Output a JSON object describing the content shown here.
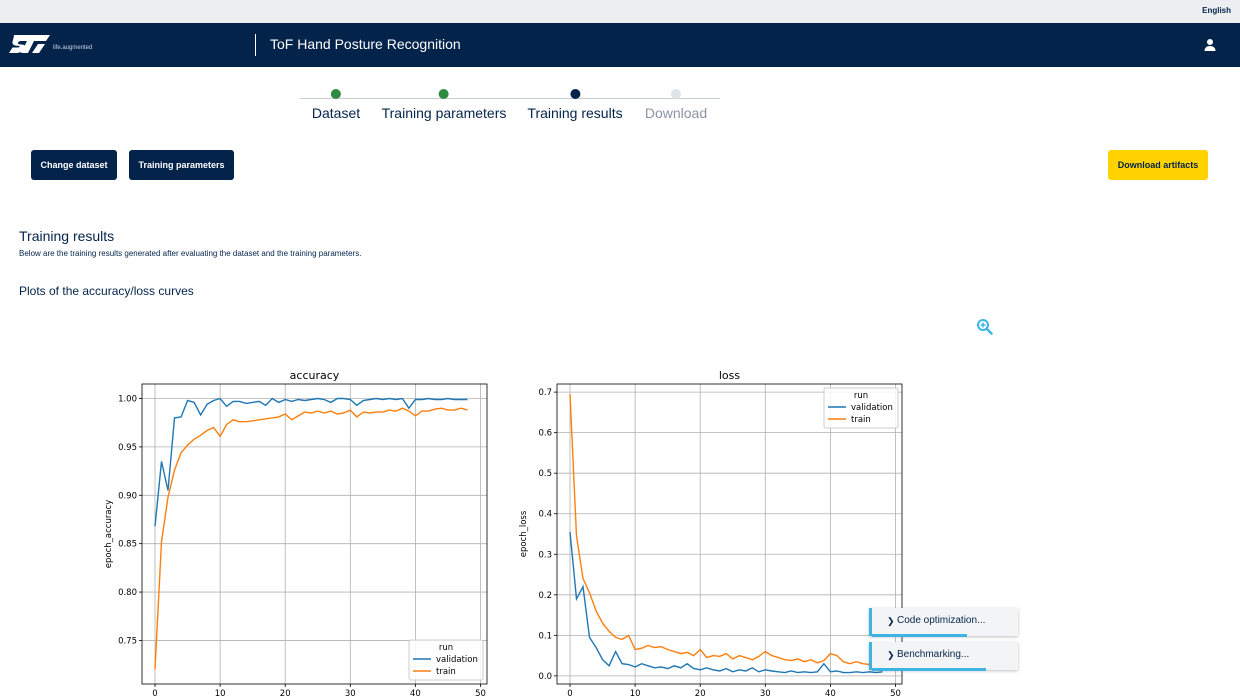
{
  "topbar": {
    "language": "English"
  },
  "header": {
    "tagline": "life.augmented",
    "title": "ToF Hand Posture Recognition"
  },
  "stepper": {
    "steps": [
      {
        "label": "Dataset",
        "state": "done"
      },
      {
        "label": "Training parameters",
        "state": "done"
      },
      {
        "label": "Training results",
        "state": "current"
      },
      {
        "label": "Download",
        "state": "pending"
      }
    ]
  },
  "actions": {
    "change_dataset": "Change dataset",
    "training_parameters": "Training parameters",
    "download_artifacts": "Download artifacts"
  },
  "results": {
    "title": "Training results",
    "description": "Below are the training results generated after evaluating the dataset and the training parameters.",
    "plots_title": "Plots of the accuracy/loss curves"
  },
  "colors": {
    "navy": "#03234b",
    "yellow": "#ffd200",
    "done": "#2e8b3f",
    "pending": "#dfe2e6",
    "accent": "#3cb4e6",
    "validation": "#1f77b4",
    "train": "#ff7f0e"
  },
  "chart_data": [
    {
      "type": "line",
      "title": "accuracy",
      "xlabel": "",
      "ylabel": "epoch_accuracy",
      "xlim": [
        -2,
        51
      ],
      "ylim": [
        0.705,
        1.015
      ],
      "xticks": [
        0,
        10,
        20,
        30,
        40,
        50
      ],
      "yticks": [
        0.75,
        0.8,
        0.85,
        0.9,
        0.95,
        1.0
      ],
      "ytick_labels": [
        "0.75",
        "0.80",
        "0.85",
        "0.90",
        "0.95",
        "1.00"
      ],
      "grid": true,
      "legend": {
        "title": "run",
        "position": "lower-right"
      },
      "series": [
        {
          "name": "validation",
          "color": "#1f77b4",
          "x": [
            0,
            1,
            2,
            3,
            4,
            5,
            6,
            7,
            8,
            9,
            10,
            11,
            12,
            13,
            14,
            15,
            16,
            17,
            18,
            19,
            20,
            21,
            22,
            23,
            24,
            25,
            26,
            27,
            28,
            29,
            30,
            31,
            32,
            33,
            34,
            35,
            36,
            37,
            38,
            39,
            40,
            41,
            42,
            43,
            44,
            45,
            46,
            47,
            48
          ],
          "y": [
            0.868,
            0.935,
            0.905,
            0.98,
            0.981,
            0.998,
            0.996,
            0.983,
            0.994,
            0.998,
            1.0,
            0.992,
            0.997,
            0.997,
            0.995,
            0.996,
            0.997,
            0.993,
            1.0,
            0.996,
            0.999,
            0.997,
            0.999,
            0.998,
            0.999,
            1.0,
            0.999,
            0.996,
            1.0,
            1.0,
            0.999,
            0.993,
            0.998,
            0.999,
            1.0,
            0.999,
            1.0,
            0.999,
            1.0,
            0.99,
            0.999,
            0.999,
            1.0,
            0.999,
            0.999,
            1.0,
            0.999,
            0.999,
            0.999
          ]
        },
        {
          "name": "train",
          "color": "#ff7f0e",
          "x": [
            0,
            1,
            2,
            3,
            4,
            5,
            6,
            7,
            8,
            9,
            10,
            11,
            12,
            13,
            14,
            15,
            16,
            17,
            18,
            19,
            20,
            21,
            22,
            23,
            24,
            25,
            26,
            27,
            28,
            29,
            30,
            31,
            32,
            33,
            34,
            35,
            36,
            37,
            38,
            39,
            40,
            41,
            42,
            43,
            44,
            45,
            46,
            47,
            48
          ],
          "y": [
            0.72,
            0.852,
            0.898,
            0.926,
            0.944,
            0.952,
            0.958,
            0.962,
            0.967,
            0.97,
            0.961,
            0.973,
            0.978,
            0.976,
            0.976,
            0.977,
            0.978,
            0.979,
            0.98,
            0.981,
            0.984,
            0.978,
            0.982,
            0.986,
            0.985,
            0.987,
            0.985,
            0.987,
            0.984,
            0.985,
            0.988,
            0.981,
            0.986,
            0.985,
            0.986,
            0.986,
            0.988,
            0.987,
            0.99,
            0.987,
            0.982,
            0.987,
            0.987,
            0.989,
            0.99,
            0.988,
            0.988,
            0.99,
            0.988
          ]
        }
      ]
    },
    {
      "type": "line",
      "title": "loss",
      "xlabel": "",
      "ylabel": "epoch_loss",
      "xlim": [
        -2,
        51
      ],
      "ylim": [
        -0.02,
        0.72
      ],
      "xticks": [
        0,
        10,
        20,
        30,
        40,
        50
      ],
      "yticks": [
        0.0,
        0.1,
        0.2,
        0.3,
        0.4,
        0.5,
        0.6,
        0.7
      ],
      "ytick_labels": [
        "0.0",
        "0.1",
        "0.2",
        "0.3",
        "0.4",
        "0.5",
        "0.6",
        "0.7"
      ],
      "grid": true,
      "legend": {
        "title": "run",
        "position": "upper-right"
      },
      "series": [
        {
          "name": "validation",
          "color": "#1f77b4",
          "x": [
            0,
            1,
            2,
            3,
            4,
            5,
            6,
            7,
            8,
            9,
            10,
            11,
            12,
            13,
            14,
            15,
            16,
            17,
            18,
            19,
            20,
            21,
            22,
            23,
            24,
            25,
            26,
            27,
            28,
            29,
            30,
            31,
            32,
            33,
            34,
            35,
            36,
            37,
            38,
            39,
            40,
            41,
            42,
            43,
            44,
            45,
            46,
            47,
            48
          ],
          "y": [
            0.355,
            0.19,
            0.22,
            0.095,
            0.07,
            0.04,
            0.025,
            0.06,
            0.03,
            0.028,
            0.022,
            0.03,
            0.025,
            0.02,
            0.022,
            0.018,
            0.025,
            0.02,
            0.03,
            0.018,
            0.015,
            0.02,
            0.015,
            0.012,
            0.018,
            0.01,
            0.015,
            0.012,
            0.02,
            0.01,
            0.015,
            0.012,
            0.01,
            0.008,
            0.012,
            0.008,
            0.01,
            0.008,
            0.01,
            0.03,
            0.01,
            0.012,
            0.008,
            0.008,
            0.01,
            0.008,
            0.01,
            0.008,
            0.01
          ]
        },
        {
          "name": "train",
          "color": "#ff7f0e",
          "x": [
            0,
            1,
            2,
            3,
            4,
            5,
            6,
            7,
            8,
            9,
            10,
            11,
            12,
            13,
            14,
            15,
            16,
            17,
            18,
            19,
            20,
            21,
            22,
            23,
            24,
            25,
            26,
            27,
            28,
            29,
            30,
            31,
            32,
            33,
            34,
            35,
            36,
            37,
            38,
            39,
            40,
            41,
            42,
            43,
            44,
            45,
            46,
            47,
            48
          ],
          "y": [
            0.695,
            0.345,
            0.24,
            0.205,
            0.16,
            0.13,
            0.11,
            0.095,
            0.09,
            0.1,
            0.065,
            0.068,
            0.075,
            0.07,
            0.072,
            0.065,
            0.06,
            0.055,
            0.058,
            0.05,
            0.065,
            0.045,
            0.05,
            0.048,
            0.055,
            0.042,
            0.05,
            0.045,
            0.04,
            0.048,
            0.06,
            0.05,
            0.045,
            0.04,
            0.038,
            0.042,
            0.035,
            0.04,
            0.032,
            0.038,
            0.055,
            0.05,
            0.035,
            0.03,
            0.035,
            0.03,
            0.028,
            0.025,
            0.03
          ]
        }
      ]
    }
  ],
  "notifications": [
    {
      "label": "Code optimization...",
      "progress": 0.65
    },
    {
      "label": "Benchmarking...",
      "progress": 0.78
    }
  ]
}
